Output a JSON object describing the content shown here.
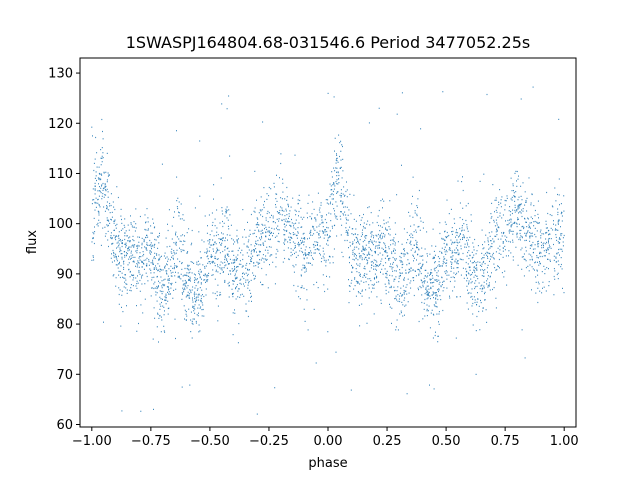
{
  "chart_data": {
    "type": "scatter",
    "title": "1SWASPJ164804.68-031546.6 Period 3477052.25s",
    "xlabel": "phase",
    "ylabel": "flux",
    "xlim": [
      -1.05,
      1.05
    ],
    "ylim": [
      59.5,
      133
    ],
    "xticks": [
      -1.0,
      -0.75,
      -0.5,
      -0.25,
      0.0,
      0.25,
      0.5,
      0.75,
      1.0
    ],
    "xtick_labels": [
      "−1.00",
      "−0.75",
      "−0.50",
      "−0.25",
      "0.00",
      "0.25",
      "0.50",
      "0.75",
      "1.00"
    ],
    "yticks": [
      60,
      70,
      80,
      90,
      100,
      110,
      120,
      130
    ],
    "ytick_labels": [
      "60",
      "70",
      "80",
      "90",
      "100",
      "110",
      "120",
      "130"
    ],
    "grid": false,
    "marker_color": "#1f77b4",
    "phase_range": [
      -1.0,
      1.0
    ],
    "series": [
      {
        "values_profile": [
          {
            "phase": 0.0,
            "flux": 96
          },
          {
            "phase": 0.02,
            "flux": 106
          },
          {
            "phase": 0.05,
            "flux": 109
          },
          {
            "phase": 0.08,
            "flux": 100
          },
          {
            "phase": 0.1,
            "flux": 95
          },
          {
            "phase": 0.13,
            "flux": 93
          },
          {
            "phase": 0.17,
            "flux": 95
          },
          {
            "phase": 0.2,
            "flux": 92
          },
          {
            "phase": 0.23,
            "flux": 95
          },
          {
            "phase": 0.27,
            "flux": 92
          },
          {
            "phase": 0.3,
            "flux": 87
          },
          {
            "phase": 0.33,
            "flux": 90
          },
          {
            "phase": 0.37,
            "flux": 97
          },
          {
            "phase": 0.4,
            "flux": 90
          },
          {
            "phase": 0.43,
            "flux": 86
          },
          {
            "phase": 0.47,
            "flux": 88
          },
          {
            "phase": 0.5,
            "flux": 95
          },
          {
            "phase": 0.53,
            "flux": 93
          },
          {
            "phase": 0.57,
            "flux": 96
          },
          {
            "phase": 0.6,
            "flux": 90
          },
          {
            "phase": 0.63,
            "flux": 89
          },
          {
            "phase": 0.67,
            "flux": 92
          },
          {
            "phase": 0.7,
            "flux": 96
          },
          {
            "phase": 0.73,
            "flux": 98
          },
          {
            "phase": 0.77,
            "flux": 99
          },
          {
            "phase": 0.8,
            "flux": 103
          },
          {
            "phase": 0.83,
            "flux": 99
          },
          {
            "phase": 0.87,
            "flux": 96
          },
          {
            "phase": 0.9,
            "flux": 94
          },
          {
            "phase": 0.93,
            "flux": 96
          },
          {
            "phase": 0.97,
            "flux": 98
          },
          {
            "phase": 1.0,
            "flux": 96
          }
        ]
      }
    ]
  }
}
